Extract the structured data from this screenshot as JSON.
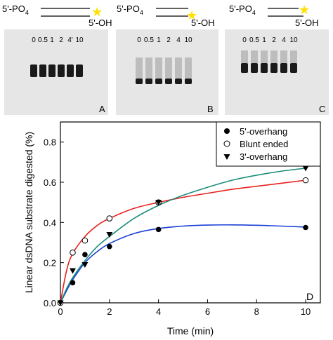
{
  "panels": [
    {
      "letter": "A",
      "substrate": {
        "top_label": "5'-PO",
        "subscript": "4",
        "bottom_label": "5'-OH",
        "top_strand_long": true,
        "bottom_strand_long": false
      },
      "lane_labels": [
        "0",
        "0.5",
        "1",
        "2",
        "4'",
        "10"
      ]
    },
    {
      "letter": "B",
      "substrate": {
        "top_label": "5'-PO",
        "subscript": "4",
        "bottom_label": "5'-OH",
        "top_strand_long": true,
        "bottom_strand_long": true
      },
      "lane_labels": [
        "0",
        "0.5",
        "1",
        "2",
        "4",
        "10"
      ]
    },
    {
      "letter": "C",
      "substrate": {
        "top_label": "5'-PO",
        "subscript": "4",
        "bottom_label": "5'-OH",
        "top_strand_long": false,
        "bottom_strand_long": true
      },
      "lane_labels": [
        "0",
        "0.5",
        "1",
        "2",
        "4",
        "10"
      ]
    }
  ],
  "colors": {
    "star": "#ffe000",
    "gel_background": "#e6e6e6",
    "band": "#1a1a1a",
    "red_fit": "#e8211d",
    "teal_fit": "#1a8c7a",
    "blue_fit": "#1b3fd6"
  },
  "chart_data": {
    "type": "scatter",
    "panel_letter": "D",
    "xlabel": "Time (min)",
    "ylabel": "Linear dsDNA substrate digested (%)",
    "xlim": [
      0,
      10.6
    ],
    "ylim": [
      0,
      0.9
    ],
    "xticks": [
      0,
      2,
      4,
      6,
      8,
      10
    ],
    "yticks": [
      0.0,
      0.2,
      0.4,
      0.6,
      0.8
    ],
    "ytick_labels": [
      "0.0",
      "0.2",
      "0.4",
      "0.6",
      "0.8"
    ],
    "legend_position": "top-right",
    "series": [
      {
        "name": "5'-overhang",
        "marker": "filled-circle",
        "fit_color": "#1b3fd6",
        "x": [
          0,
          0.5,
          1,
          2,
          4,
          10
        ],
        "y": [
          0,
          0.1,
          0.24,
          0.28,
          0.365,
          0.375
        ]
      },
      {
        "name": "Blunt ended",
        "marker": "open-circle",
        "fit_color": "#e8211d",
        "x": [
          0,
          0.5,
          1,
          2,
          4,
          10
        ],
        "y": [
          0,
          0.25,
          0.31,
          0.42,
          0.5,
          0.61
        ]
      },
      {
        "name": "3'-overhang",
        "marker": "filled-triangle",
        "fit_color": "#1a8c7a",
        "x": [
          0,
          0.5,
          1,
          2,
          4,
          10
        ],
        "y": [
          0,
          0.16,
          0.19,
          0.34,
          0.5,
          0.67
        ]
      }
    ],
    "fits": [
      {
        "series": "Blunt ended",
        "color": "#e8211d",
        "x": [
          0,
          0.25,
          0.5,
          1,
          1.5,
          2,
          3,
          4,
          5,
          6,
          7,
          8,
          9,
          10
        ],
        "y": [
          0,
          0.16,
          0.245,
          0.33,
          0.385,
          0.42,
          0.47,
          0.5,
          0.525,
          0.545,
          0.565,
          0.58,
          0.595,
          0.61
        ]
      },
      {
        "series": "5'-overhang",
        "color": "#1b3fd6",
        "x": [
          0,
          0.25,
          0.5,
          1,
          1.5,
          2,
          3,
          4,
          5,
          6,
          7,
          8,
          9,
          10
        ],
        "y": [
          0,
          0.06,
          0.115,
          0.2,
          0.255,
          0.295,
          0.345,
          0.37,
          0.382,
          0.387,
          0.388,
          0.386,
          0.382,
          0.377
        ]
      },
      {
        "series": "3'-overhang",
        "color": "#1a8c7a",
        "x": [
          0,
          0.25,
          0.5,
          1,
          1.5,
          2,
          3,
          4,
          5,
          6,
          7,
          8,
          9,
          10
        ],
        "y": [
          0,
          0.07,
          0.125,
          0.21,
          0.28,
          0.33,
          0.42,
          0.485,
          0.535,
          0.575,
          0.61,
          0.635,
          0.655,
          0.67
        ]
      }
    ]
  }
}
